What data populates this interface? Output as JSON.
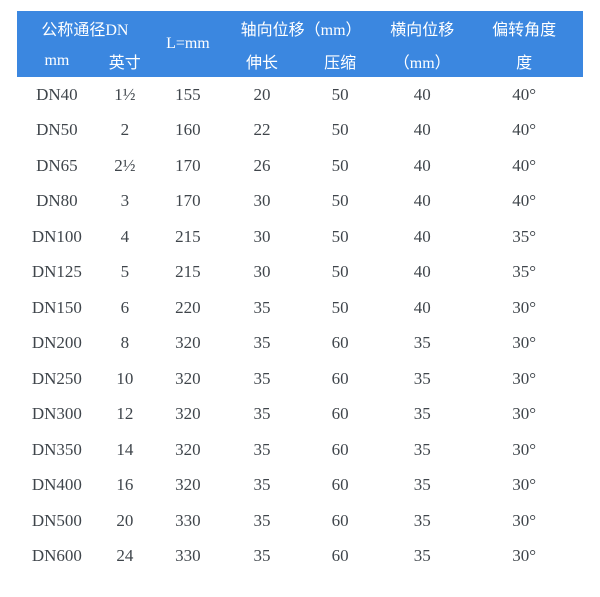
{
  "theme": {
    "header_bg": "#3b87e0",
    "header_text": "#ffffff",
    "body_text": "#3f454b",
    "page_bg": "#ffffff"
  },
  "table": {
    "header": {
      "row1": {
        "nominal_diameter": "公称通径DN",
        "l_mm": "L=mm",
        "axial_displacement": "轴向位移（mm）",
        "lateral_displacement": "横向位移",
        "deflection_angle": "偏转角度"
      },
      "row2": {
        "mm": "mm",
        "inch": "英寸",
        "extension": "伸长",
        "compression": "压缩",
        "lateral_mm": "（mm）",
        "degree": "度"
      }
    },
    "rows": [
      [
        "DN40",
        "1½",
        "155",
        "20",
        "50",
        "40",
        "40°"
      ],
      [
        "DN50",
        "2",
        "160",
        "22",
        "50",
        "40",
        "40°"
      ],
      [
        "DN65",
        "2½",
        "170",
        "26",
        "50",
        "40",
        "40°"
      ],
      [
        "DN80",
        "3",
        "170",
        "30",
        "50",
        "40",
        "40°"
      ],
      [
        "DN100",
        "4",
        "215",
        "30",
        "50",
        "40",
        "35°"
      ],
      [
        "DN125",
        "5",
        "215",
        "30",
        "50",
        "40",
        "35°"
      ],
      [
        "DN150",
        "6",
        "220",
        "35",
        "50",
        "40",
        "30°"
      ],
      [
        "DN200",
        "8",
        "320",
        "35",
        "60",
        "35",
        "30°"
      ],
      [
        "DN250",
        "10",
        "320",
        "35",
        "60",
        "35",
        "30°"
      ],
      [
        "DN300",
        "12",
        "320",
        "35",
        "60",
        "35",
        "30°"
      ],
      [
        "DN350",
        "14",
        "320",
        "35",
        "60",
        "35",
        "30°"
      ],
      [
        "DN400",
        "16",
        "320",
        "35",
        "60",
        "35",
        "30°"
      ],
      [
        "DN500",
        "20",
        "330",
        "35",
        "60",
        "35",
        "30°"
      ],
      [
        "DN600",
        "24",
        "330",
        "35",
        "60",
        "35",
        "30°"
      ]
    ]
  }
}
